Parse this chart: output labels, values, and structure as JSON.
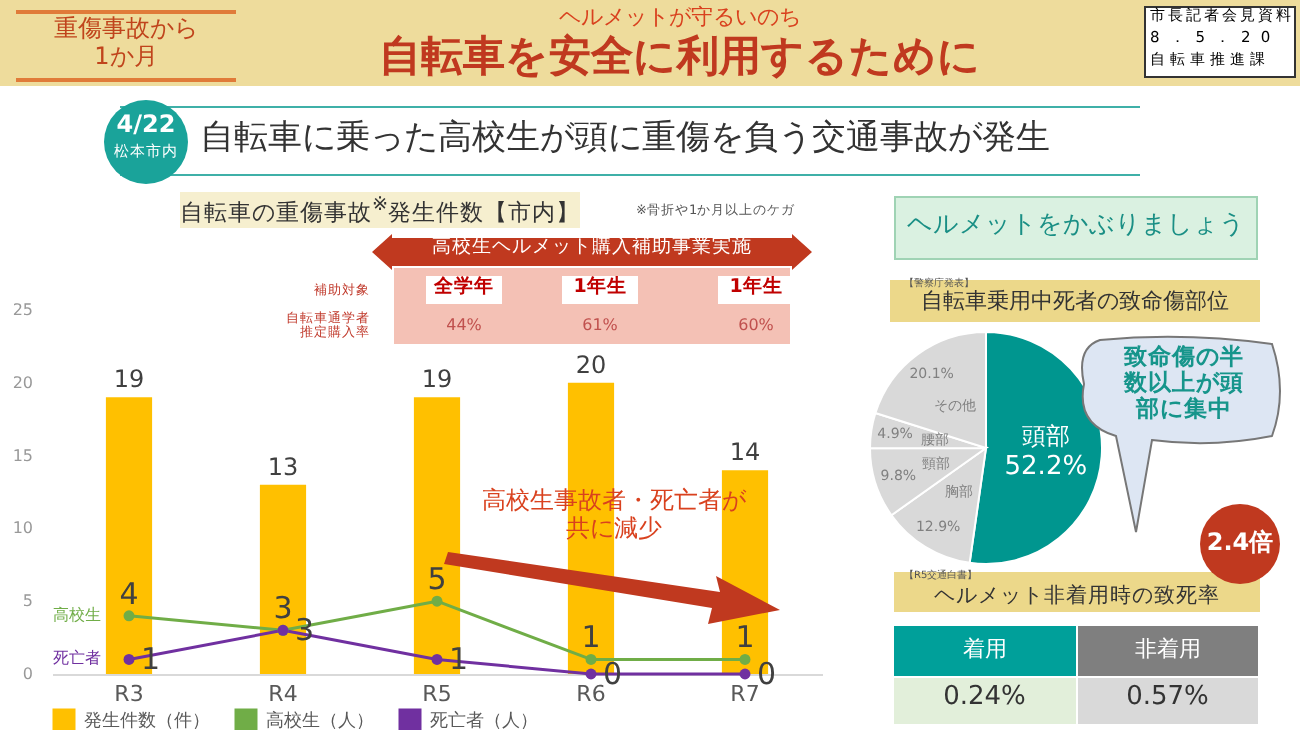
{
  "chart_data": [
    {
      "type": "bar",
      "title": "自転車の重傷事故$^{※}$発生件数【市内】",
      "categories": [
        "R3",
        "R4",
        "R5",
        "R6",
        "R7"
      ],
      "series": [
        {
          "name": "発生件数（件）",
          "type": "bar",
          "color": "#ffc000",
          "values": [
            19,
            13,
            19,
            20,
            14
          ]
        },
        {
          "name": "高校生（人）",
          "type": "line",
          "color": "#70ad47",
          "values": [
            4,
            3,
            5,
            1,
            1
          ]
        },
        {
          "name": "死亡者（人）",
          "type": "line",
          "color": "#7030a0",
          "values": [
            1,
            3,
            1,
            0,
            0
          ]
        }
      ],
      "ylim": [
        0,
        25
      ],
      "yticks": [
        0,
        5,
        10,
        15,
        20,
        25
      ],
      "data_labels": true,
      "legend": "bottom",
      "marker": "circle",
      "annotations": [
        "重傷事故から1か月",
        "ヘルメットが守るいのち",
        "自転車を安全に利用するために",
        "市長記者会見資料",
        "8．5．20",
        "自転車推進課",
        "4/22",
        "松本市内",
        "自転車に乗った高校生が頭に重傷を負う交通事故が発生",
        "※骨折や1か月以上のケガ",
        "高校生ヘルメット購入補助事業実施",
        "補助対象",
        "全学年",
        "1年生",
        "1年生",
        "自転車通学者推定購入率",
        "44%",
        "61%",
        "60%",
        "高校生事故者・死亡者が共に減少",
        {
          "text": "高校生",
          "x": "R3",
          "y": 4
        },
        {
          "text": "死亡者",
          "x": "R3",
          "y": 1
        }
      ]
    },
    {
      "type": "pie",
      "title": "自転車乗用中死者の致命傷部位",
      "categories": [
        "頭部",
        "胸部",
        "頸部",
        "腰部",
        "その他"
      ],
      "values": [
        52.2,
        12.9,
        9.8,
        4.9,
        20.1
      ],
      "colors": [
        "#00968f",
        "#d9d9d9",
        "#d9d9d9",
        "#d9d9d9",
        "#d9d9d9"
      ],
      "value_labels": [
        "52.2%",
        "12.9%",
        "9.8%",
        "4.9%",
        "20.1%"
      ],
      "annotations": [
        "【警察庁発表】",
        "ヘルメットをかぶりましょう",
        "致命傷の半数以上が頭部に集中"
      ]
    },
    {
      "type": "other",
      "title": "ヘルメット非着用時の致死率",
      "categories": [
        "着用",
        "非着用"
      ],
      "value_labels": [
        "0.24%",
        "0.57%"
      ],
      "colors": [
        "#00a09a",
        "#7f7f7f"
      ],
      "annotations": [
        "【R5交通白書】",
        "2.4倍"
      ]
    }
  ]
}
